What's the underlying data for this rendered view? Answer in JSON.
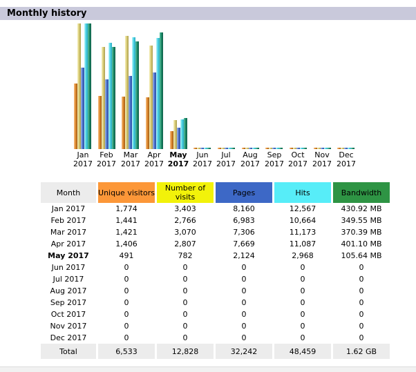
{
  "title": "Monthly history",
  "colors": {
    "title_bar_bg": "#C9C9DB",
    "month_header_bg": "#ECECEC",
    "total_row_bg": "#ECECEC",
    "bottom_strip_bg": "#F1F1F1",
    "bottom_strip_border": "#DCDCDC"
  },
  "chart_data": {
    "type": "bar",
    "title": "Monthly history",
    "xlabel": "",
    "ylabel": "",
    "legend_position": "none",
    "grid": false,
    "categories": [
      "Jan 2017",
      "Feb 2017",
      "Mar 2017",
      "Apr 2017",
      "May 2017",
      "Jun 2017",
      "Jul 2017",
      "Aug 2017",
      "Sep 2017",
      "Oct 2017",
      "Nov 2017",
      "Dec 2017"
    ],
    "bold_category_index": 4,
    "scale_note": "each scale group normalized to its own max; max bar height 182px; zero months drawn as 2px stubs",
    "series": [
      {
        "name": "Unique visitors",
        "scale_group": "visits",
        "gradient": [
          "#F6C088",
          "#E08A2F",
          "#9E5A14"
        ],
        "values": [
          1774,
          1441,
          1421,
          1406,
          491,
          0,
          0,
          0,
          0,
          0,
          0,
          0
        ]
      },
      {
        "name": "Number of visits",
        "scale_group": "visits",
        "gradient": [
          "#F7F0BC",
          "#DBCE7A",
          "#A99C4B"
        ],
        "values": [
          3403,
          2766,
          3070,
          2807,
          782,
          0,
          0,
          0,
          0,
          0,
          0,
          0
        ]
      },
      {
        "name": "Pages",
        "scale_group": "hits",
        "gradient": [
          "#A8BCEC",
          "#5075CE",
          "#2A4FA4"
        ],
        "values": [
          8160,
          6983,
          7306,
          7669,
          2124,
          0,
          0,
          0,
          0,
          0,
          0,
          0
        ]
      },
      {
        "name": "Hits",
        "scale_group": "hits",
        "gradient": [
          "#C0F6FA",
          "#52D6E6",
          "#28A8C0"
        ],
        "values": [
          12567,
          10664,
          11173,
          11087,
          2968,
          0,
          0,
          0,
          0,
          0,
          0,
          0
        ]
      },
      {
        "name": "Bandwidth (MB)",
        "scale_group": "bandwidth",
        "gradient": [
          "#62C6A6",
          "#1F8E6C",
          "#0B5C44"
        ],
        "values": [
          430.92,
          349.55,
          370.39,
          401.1,
          105.64,
          0,
          0,
          0,
          0,
          0,
          0,
          0
        ]
      }
    ]
  },
  "table": {
    "headers": [
      {
        "label": "Month",
        "bg": "#ECECEC"
      },
      {
        "label": "Unique visitors",
        "bg": "#FC9738"
      },
      {
        "label": "Number of visits",
        "bg": "#F2F20A"
      },
      {
        "label": "Pages",
        "bg": "#3D68C6"
      },
      {
        "label": "Hits",
        "bg": "#57EDF8"
      },
      {
        "label": "Bandwidth",
        "bg": "#2E9444"
      }
    ],
    "rows": [
      {
        "month": "Jan 2017",
        "bold": false,
        "values": [
          "1,774",
          "3,403",
          "8,160",
          "12,567",
          "430.92 MB"
        ]
      },
      {
        "month": "Feb 2017",
        "bold": false,
        "values": [
          "1,441",
          "2,766",
          "6,983",
          "10,664",
          "349.55 MB"
        ]
      },
      {
        "month": "Mar 2017",
        "bold": false,
        "values": [
          "1,421",
          "3,070",
          "7,306",
          "11,173",
          "370.39 MB"
        ]
      },
      {
        "month": "Apr 2017",
        "bold": false,
        "values": [
          "1,406",
          "2,807",
          "7,669",
          "11,087",
          "401.10 MB"
        ]
      },
      {
        "month": "May 2017",
        "bold": true,
        "values": [
          "491",
          "782",
          "2,124",
          "2,968",
          "105.64 MB"
        ]
      },
      {
        "month": "Jun 2017",
        "bold": false,
        "values": [
          "0",
          "0",
          "0",
          "0",
          "0"
        ]
      },
      {
        "month": "Jul 2017",
        "bold": false,
        "values": [
          "0",
          "0",
          "0",
          "0",
          "0"
        ]
      },
      {
        "month": "Aug 2017",
        "bold": false,
        "values": [
          "0",
          "0",
          "0",
          "0",
          "0"
        ]
      },
      {
        "month": "Sep 2017",
        "bold": false,
        "values": [
          "0",
          "0",
          "0",
          "0",
          "0"
        ]
      },
      {
        "month": "Oct 2017",
        "bold": false,
        "values": [
          "0",
          "0",
          "0",
          "0",
          "0"
        ]
      },
      {
        "month": "Nov 2017",
        "bold": false,
        "values": [
          "0",
          "0",
          "0",
          "0",
          "0"
        ]
      },
      {
        "month": "Dec 2017",
        "bold": false,
        "values": [
          "0",
          "0",
          "0",
          "0",
          "0"
        ]
      }
    ],
    "total": {
      "label": "Total",
      "values": [
        "6,533",
        "12,828",
        "32,242",
        "48,459",
        "1.62 GB"
      ]
    }
  }
}
